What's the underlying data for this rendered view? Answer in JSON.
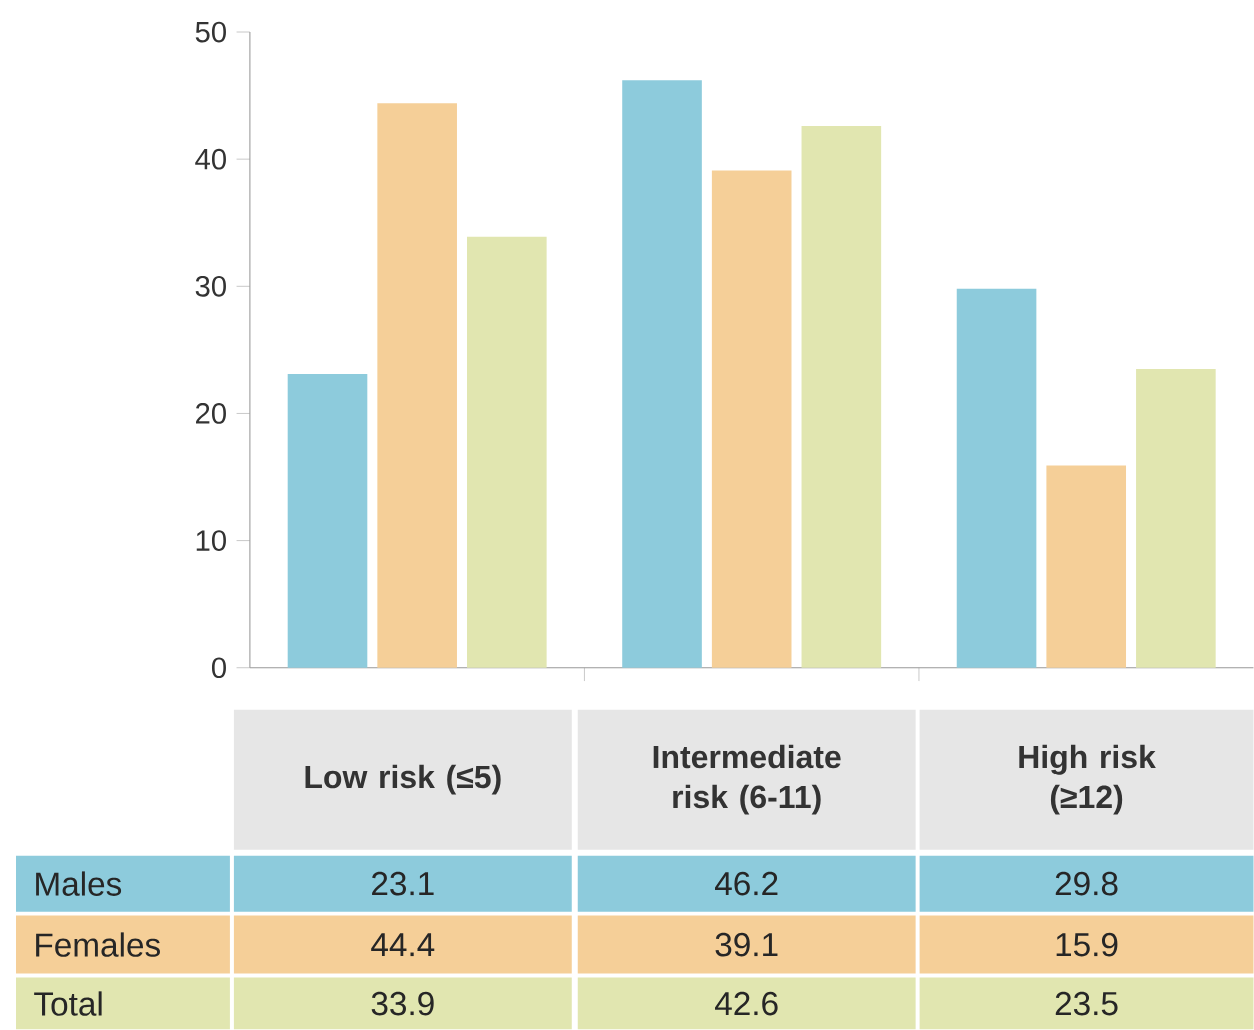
{
  "chart_data": {
    "type": "bar",
    "categories": [
      "Low risk (≤5)",
      "Intermediate risk (6-11)",
      "High risk (≥12)"
    ],
    "series": [
      {
        "name": "Males",
        "color": "#8dcbdc",
        "values": [
          23.1,
          46.2,
          29.8
        ]
      },
      {
        "name": "Females",
        "color": "#f5cf98",
        "values": [
          44.4,
          39.1,
          15.9
        ]
      },
      {
        "name": "Total",
        "color": "#e1e6b0",
        "values": [
          33.9,
          42.6,
          23.5
        ]
      }
    ],
    "ylim": [
      0,
      50
    ],
    "yticks": [
      0,
      10,
      20,
      30,
      40,
      50
    ],
    "data_labels": true
  }
}
